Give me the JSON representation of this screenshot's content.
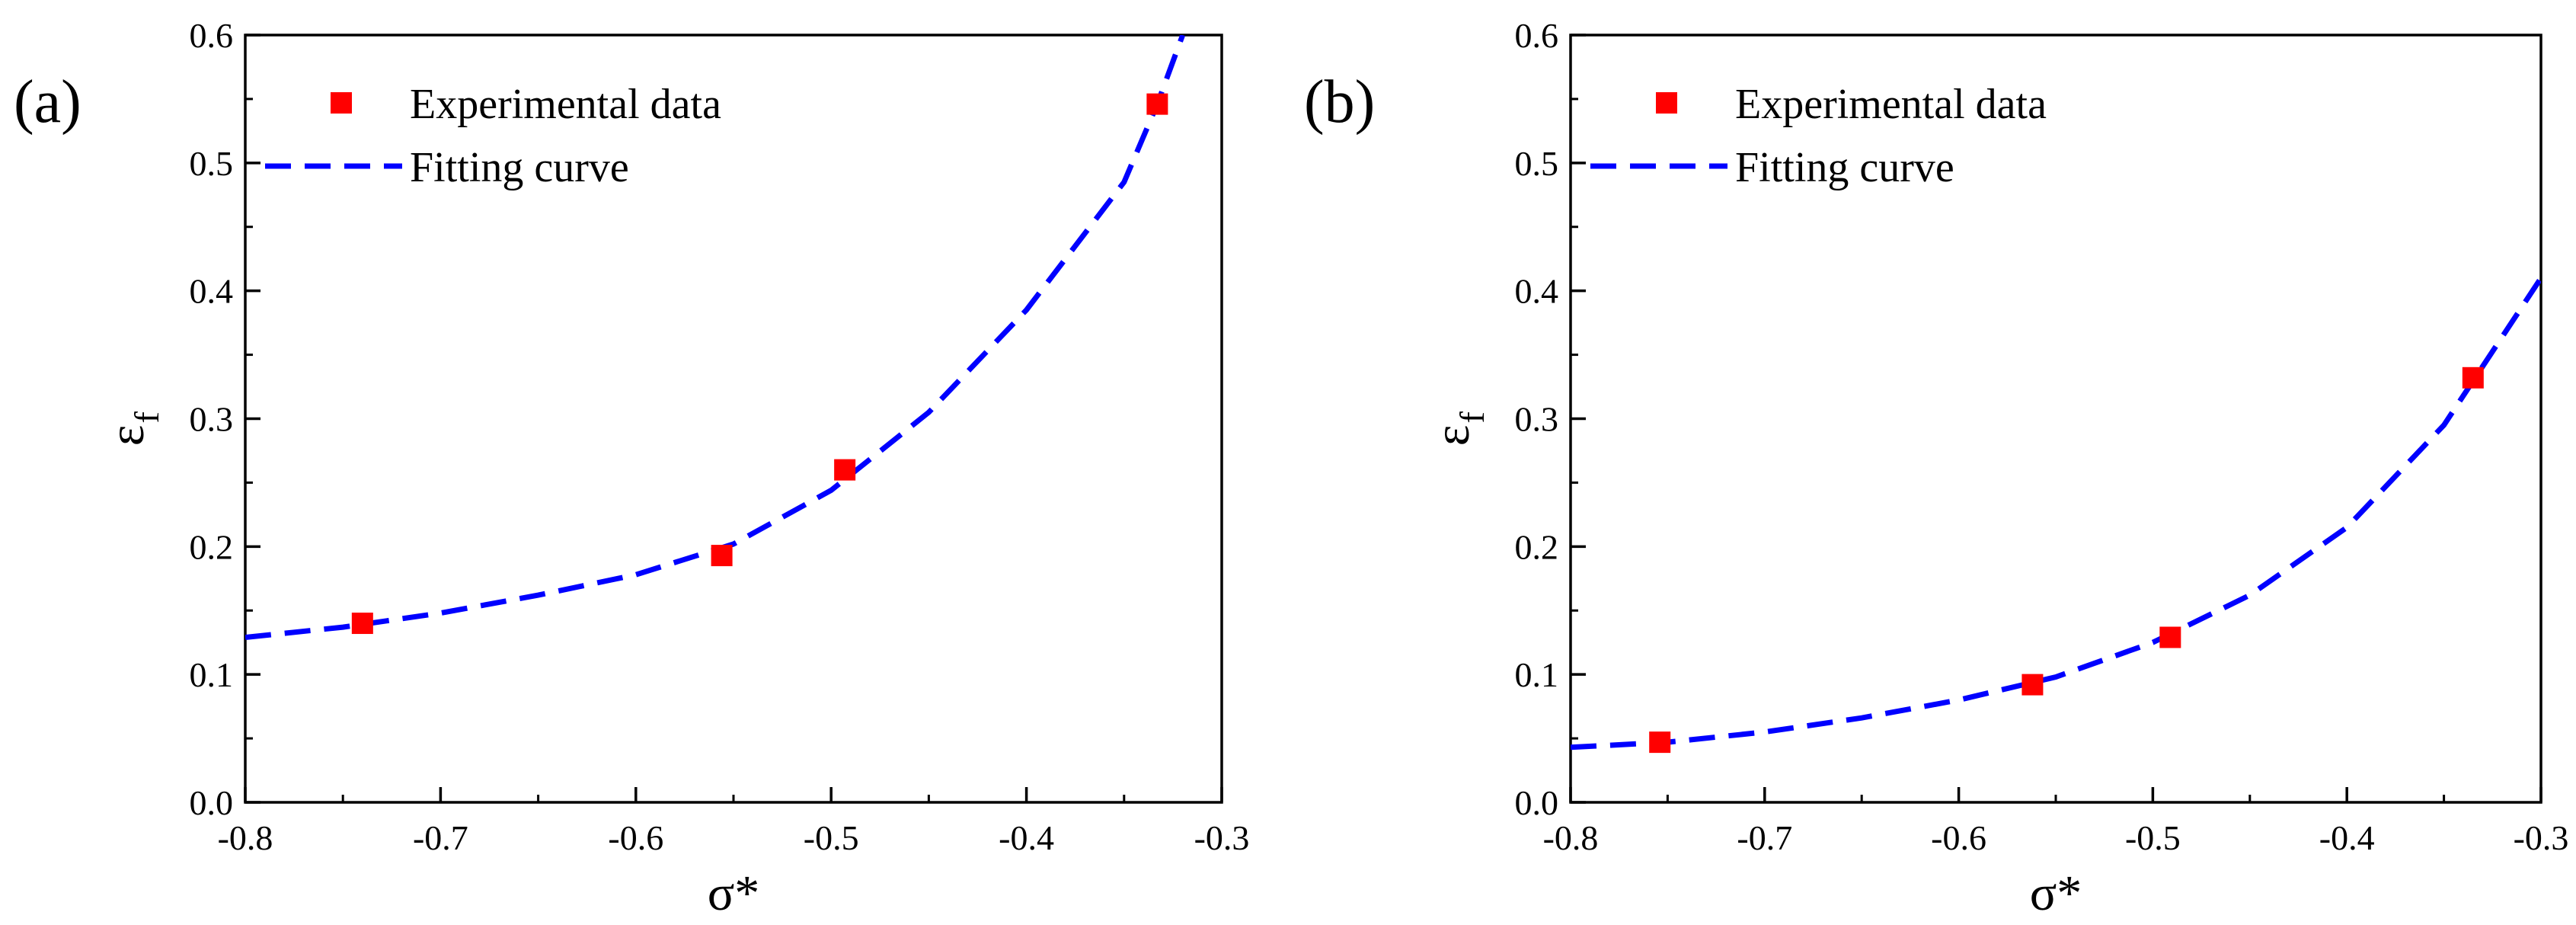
{
  "chart_data": [
    {
      "panel_label": "(a)",
      "type": "scatter",
      "xlabel": "σ*",
      "ylabel": "ε",
      "ylabel_sub": "f",
      "xlim": [
        -0.8,
        -0.3
      ],
      "ylim": [
        0.0,
        0.6
      ],
      "xticks": [
        -0.8,
        -0.7,
        -0.6,
        -0.5,
        -0.4,
        -0.3
      ],
      "yticks": [
        0.0,
        0.1,
        0.2,
        0.3,
        0.4,
        0.5,
        0.6
      ],
      "xtick_labels": [
        "-0.8",
        "-0.7",
        "-0.6",
        "-0.5",
        "-0.4",
        "-0.3"
      ],
      "ytick_labels": [
        "0.0",
        "0.1",
        "0.2",
        "0.3",
        "0.4",
        "0.5",
        "0.6"
      ],
      "grid": false,
      "legend": {
        "placement": "top-left",
        "entries": [
          {
            "label": "Experimental data",
            "style": "marker",
            "color": "#ff0000"
          },
          {
            "label": "Fitting curve",
            "style": "dashed",
            "color": "#0000ff"
          }
        ]
      },
      "series": [
        {
          "name": "Experimental data",
          "kind": "scatter",
          "color": "#ff0000",
          "x": [
            -0.74,
            -0.556,
            -0.493,
            -0.333
          ],
          "y": [
            0.14,
            0.193,
            0.26,
            0.546
          ]
        },
        {
          "name": "Fitting curve",
          "kind": "line",
          "dashed": true,
          "color": "#0000ff",
          "x": [
            -0.8,
            -0.75,
            -0.7,
            -0.65,
            -0.6,
            -0.55,
            -0.5,
            -0.45,
            -0.4,
            -0.35,
            -0.333,
            -0.32
          ],
          "y": [
            0.129,
            0.137,
            0.148,
            0.162,
            0.178,
            0.202,
            0.244,
            0.305,
            0.385,
            0.485,
            0.546,
            0.6
          ]
        }
      ]
    },
    {
      "panel_label": "(b)",
      "type": "scatter",
      "xlabel": "σ*",
      "ylabel": "ε",
      "ylabel_sub": "f",
      "xlim": [
        -0.8,
        -0.3
      ],
      "ylim": [
        0.0,
        0.6
      ],
      "xticks": [
        -0.8,
        -0.7,
        -0.6,
        -0.5,
        -0.4,
        -0.3
      ],
      "yticks": [
        0.0,
        0.1,
        0.2,
        0.3,
        0.4,
        0.5,
        0.6
      ],
      "xtick_labels": [
        "-0.8",
        "-0.7",
        "-0.6",
        "-0.5",
        "-0.4",
        "-0.3"
      ],
      "ytick_labels": [
        "0.0",
        "0.1",
        "0.2",
        "0.3",
        "0.4",
        "0.5",
        "0.6"
      ],
      "grid": false,
      "legend": {
        "placement": "top-left",
        "entries": [
          {
            "label": "Experimental data",
            "style": "marker",
            "color": "#ff0000"
          },
          {
            "label": "Fitting curve",
            "style": "dashed",
            "color": "#0000ff"
          }
        ]
      },
      "series": [
        {
          "name": "Experimental data",
          "kind": "scatter",
          "color": "#ff0000",
          "x": [
            -0.754,
            -0.562,
            -0.491,
            -0.335
          ],
          "y": [
            0.047,
            0.092,
            0.129,
            0.332
          ]
        },
        {
          "name": "Fitting curve",
          "kind": "line",
          "dashed": true,
          "color": "#0000ff",
          "x": [
            -0.8,
            -0.75,
            -0.7,
            -0.65,
            -0.6,
            -0.55,
            -0.5,
            -0.45,
            -0.4,
            -0.35,
            -0.3
          ],
          "y": [
            0.043,
            0.047,
            0.055,
            0.066,
            0.08,
            0.098,
            0.125,
            0.162,
            0.215,
            0.295,
            0.41
          ]
        }
      ]
    }
  ]
}
